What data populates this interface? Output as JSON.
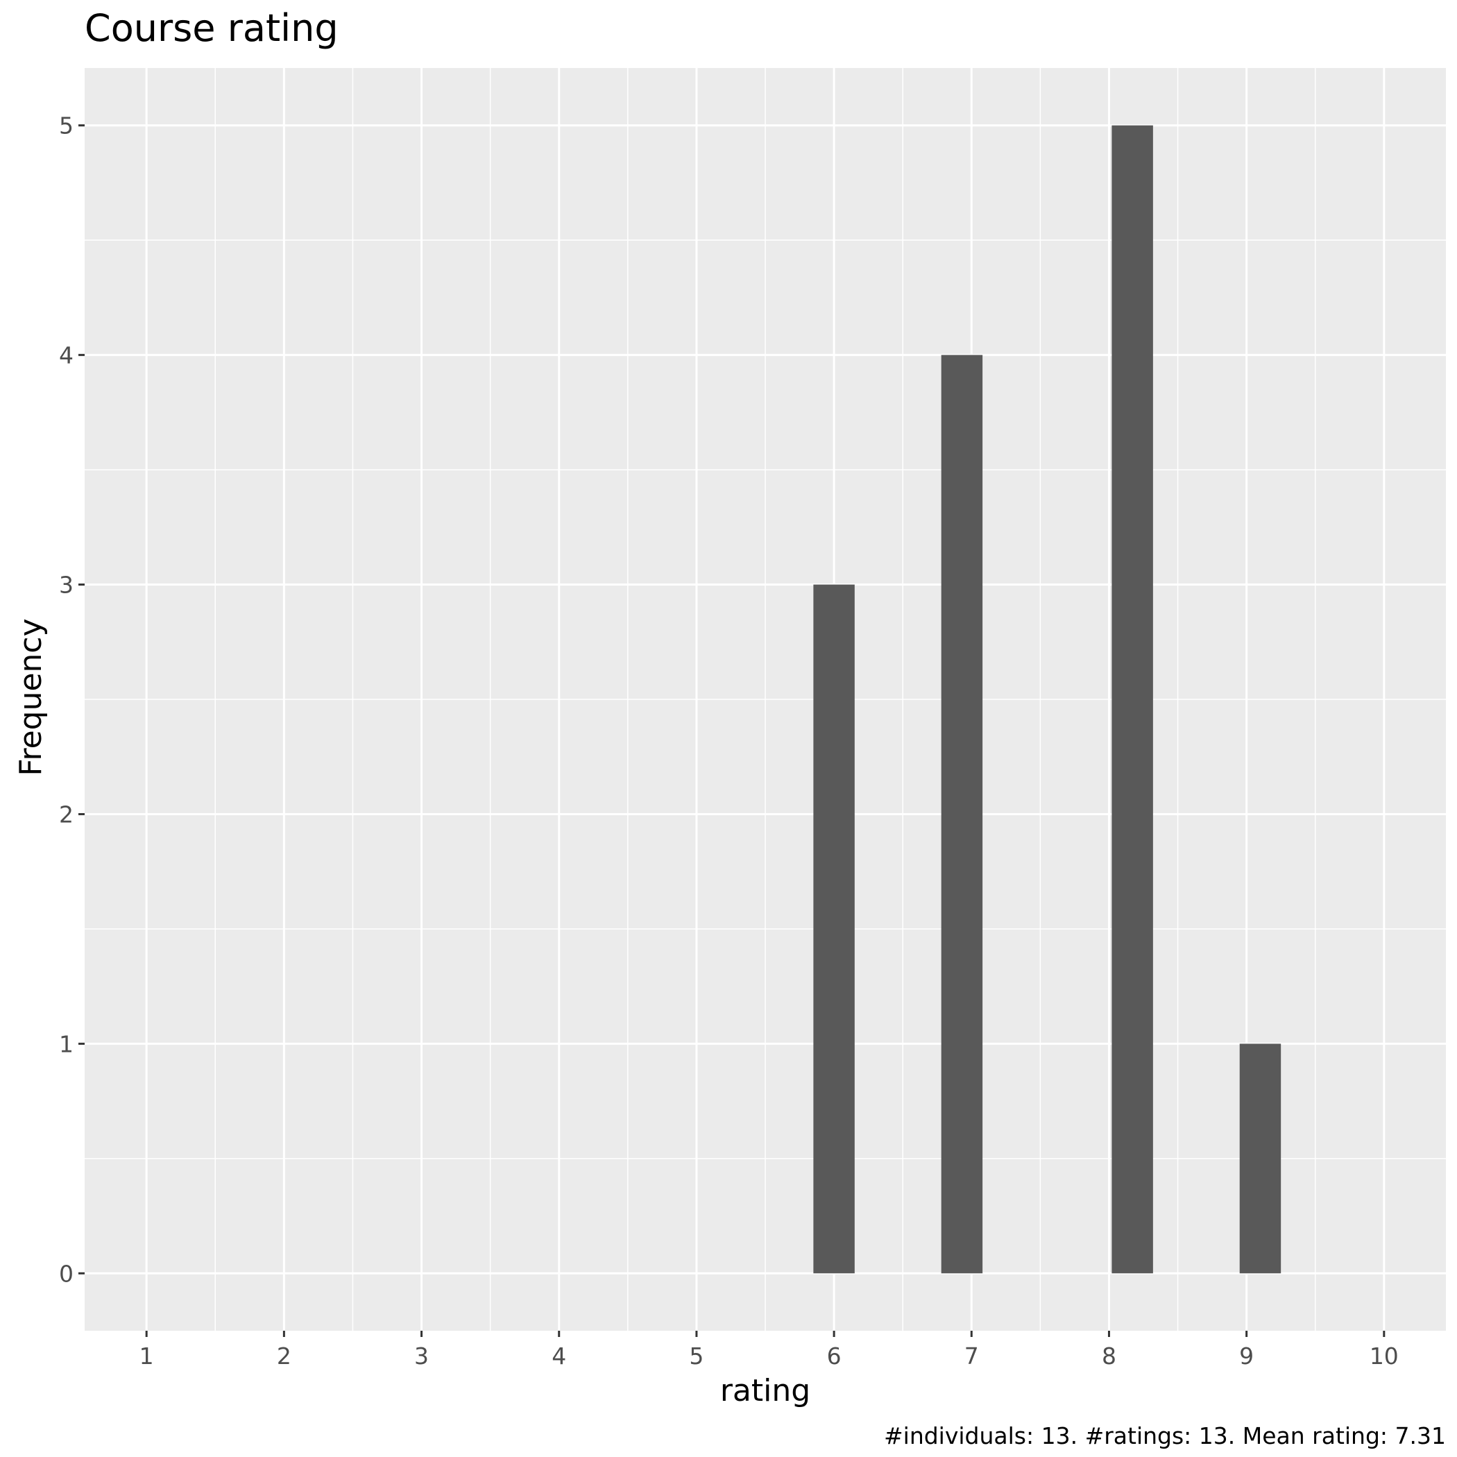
{
  "chart_data": {
    "type": "bar",
    "title": "Course rating",
    "xlabel": "rating",
    "ylabel": "Frequency",
    "caption": "#individuals: 13. #ratings: 13. Mean rating: 7.31",
    "xlim": [
      0.55,
      10.45
    ],
    "ylim": [
      -0.25,
      5.25
    ],
    "x_ticks": [
      1,
      2,
      3,
      4,
      5,
      6,
      7,
      8,
      9,
      10
    ],
    "y_ticks": [
      0,
      1,
      2,
      3,
      4,
      5
    ],
    "bars": [
      {
        "x_start": 5.85,
        "x_end": 6.15,
        "value": 3
      },
      {
        "x_start": 6.78,
        "x_end": 7.08,
        "value": 4
      },
      {
        "x_start": 8.02,
        "x_end": 8.32,
        "value": 5
      },
      {
        "x_start": 8.95,
        "x_end": 9.25,
        "value": 1
      }
    ],
    "grid": true,
    "colors": {
      "panel": "#ebebeb",
      "grid": "#ffffff",
      "bar": "#595959"
    }
  }
}
